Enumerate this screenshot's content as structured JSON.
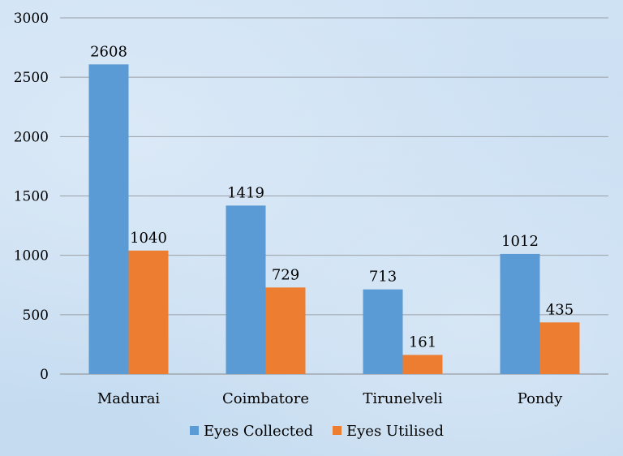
{
  "chart_data": {
    "type": "bar",
    "categories": [
      "Madurai",
      "Coimbatore",
      "Tirunelveli",
      "Pondy"
    ],
    "series": [
      {
        "name": "Eyes Collected",
        "values": [
          2608,
          1419,
          713,
          1012
        ],
        "color": "#5b9bd5"
      },
      {
        "name": "Eyes Utilised",
        "values": [
          1040,
          729,
          161,
          435
        ],
        "color": "#ed7d31"
      }
    ],
    "yticks": [
      0,
      500,
      1000,
      1500,
      2000,
      2500,
      3000
    ],
    "ylim": [
      0,
      3000
    ],
    "grid": true,
    "legend_position": "bottom"
  }
}
